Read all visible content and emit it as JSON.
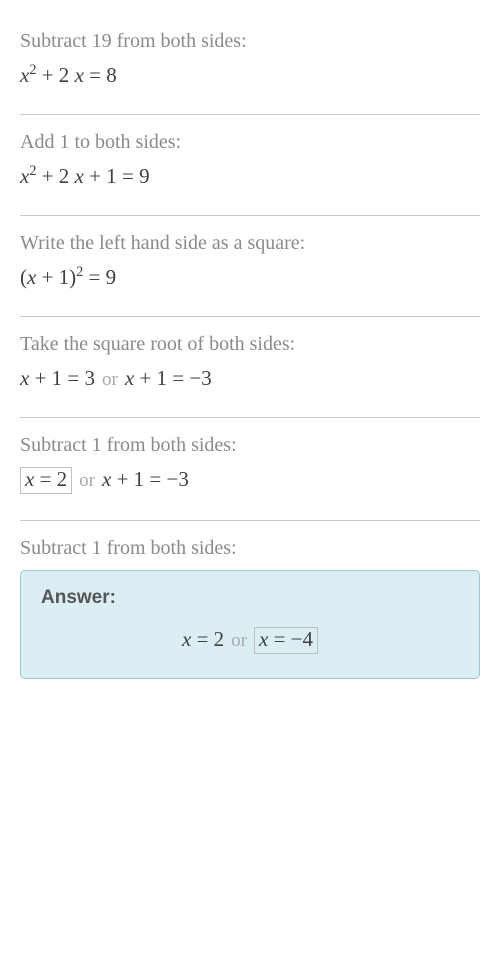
{
  "colors": {
    "text_instruction": "#8a8a8a",
    "text_equation": "#404040",
    "text_or": "#a8a8a8",
    "divider": "#c8c8c8",
    "box_border": "#c0c0c0",
    "answer_bg": "#dbeef3",
    "answer_border": "#9cc8d4",
    "answer_label": "#555555"
  },
  "typography": {
    "instruction_fontsize": 20,
    "equation_fontsize": 21,
    "answer_label_fontsize": 19
  },
  "steps": [
    {
      "instruction": "Subtract 19 from both sides:",
      "eq_pre": "x",
      "eq_sup": "2",
      "eq_rest": " + 2 x = 8"
    },
    {
      "instruction": "Add 1 to both sides:",
      "eq_pre": "x",
      "eq_sup": "2",
      "eq_rest": " + 2 x + 1 = 9"
    },
    {
      "instruction": "Write the left hand side as a square:",
      "eq_pre": "(x + 1)",
      "eq_sup": "2",
      "eq_rest": " = 9"
    },
    {
      "instruction": "Take the square root of both sides:",
      "left": "x + 1 = 3",
      "or": "or",
      "right": "x + 1 = −3"
    },
    {
      "instruction": "Subtract 1 from both sides:",
      "left_boxed": "x = 2",
      "or": "or",
      "right": "x + 1 = −3"
    },
    {
      "instruction": "Subtract 1 from both sides:"
    }
  ],
  "answer": {
    "label": "Answer:",
    "left": "x = 2",
    "or": "or",
    "right_boxed": "x = −4"
  }
}
